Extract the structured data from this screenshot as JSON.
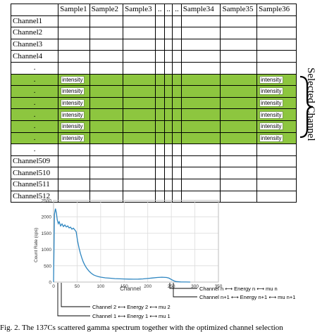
{
  "table": {
    "corner": "",
    "columns": [
      "Sample1",
      "Sample2",
      "Sample3",
      "..",
      "..",
      "..",
      "Sample34",
      "Sample35",
      "Sample36"
    ],
    "rows": [
      {
        "label": "Channel1",
        "selected": false
      },
      {
        "label": "Channel2",
        "selected": false
      },
      {
        "label": "Channel3",
        "selected": false
      },
      {
        "label": "Channel4",
        "selected": false
      },
      {
        "label": ".",
        "selected": false
      },
      {
        "label": ".",
        "selected": true
      },
      {
        "label": ".",
        "selected": true
      },
      {
        "label": ".",
        "selected": true
      },
      {
        "label": ".",
        "selected": true
      },
      {
        "label": ".",
        "selected": true
      },
      {
        "label": ".",
        "selected": true
      },
      {
        "label": ".",
        "selected": false
      },
      {
        "label": "Channel509",
        "selected": false
      },
      {
        "label": "Channel510",
        "selected": false
      },
      {
        "label": "Channel511",
        "selected": false
      },
      {
        "label": "Channel512",
        "selected": false
      }
    ],
    "cell_text": "intensity",
    "dot": "."
  },
  "annotation": {
    "selected_label": "Selected Channel",
    "selected_color": "#8dc63f"
  },
  "chart_data": {
    "type": "line",
    "xlabel": "Channel",
    "ylabel": "Count Rate (cps)",
    "xlim": [
      0,
      350
    ],
    "ylim": [
      0,
      2500
    ],
    "xticks": [
      0,
      50,
      100,
      150,
      200,
      250,
      300,
      350
    ],
    "yticks": [
      0,
      500,
      1000,
      1500,
      2000,
      2500
    ],
    "grid": true,
    "line_color": "#2e86c1",
    "x": [
      0,
      2,
      4,
      6,
      8,
      10,
      12,
      15,
      18,
      21,
      24,
      27,
      30,
      33,
      36,
      39,
      42,
      45,
      48,
      51,
      54,
      57,
      60,
      63,
      66,
      70,
      75,
      80,
      85,
      90,
      95,
      100,
      110,
      120,
      130,
      140,
      150,
      160,
      170,
      180,
      190,
      200,
      210,
      220,
      230,
      240,
      245,
      250,
      255,
      260,
      270,
      280,
      290
    ],
    "y": [
      0,
      2080,
      2250,
      2120,
      1900,
      1790,
      1850,
      1720,
      1780,
      1700,
      1750,
      1690,
      1720,
      1660,
      1680,
      1620,
      1650,
      1600,
      1540,
      1260,
      1050,
      880,
      740,
      620,
      530,
      430,
      340,
      270,
      220,
      190,
      165,
      150,
      130,
      118,
      105,
      100,
      95,
      90,
      88,
      90,
      98,
      110,
      125,
      140,
      148,
      140,
      120,
      80,
      40,
      15,
      5,
      2,
      0
    ]
  },
  "chart_annotations": [
    {
      "text": "Channel n ⟷ Energy n ⟷ mu n"
    },
    {
      "text": "Channel n+1 ⟷ Energy n+1 ⟷ mu n+1"
    },
    {
      "text": "Channel 2 ⟷ Energy 2 ⟷ mu 2"
    },
    {
      "text": "Channel 1 ⟷ Energy 1 ⟷ mu 1"
    }
  ],
  "caption": "Fig. 2. The 137Cs scattered gamma spectrum together with the optimized channel selection"
}
